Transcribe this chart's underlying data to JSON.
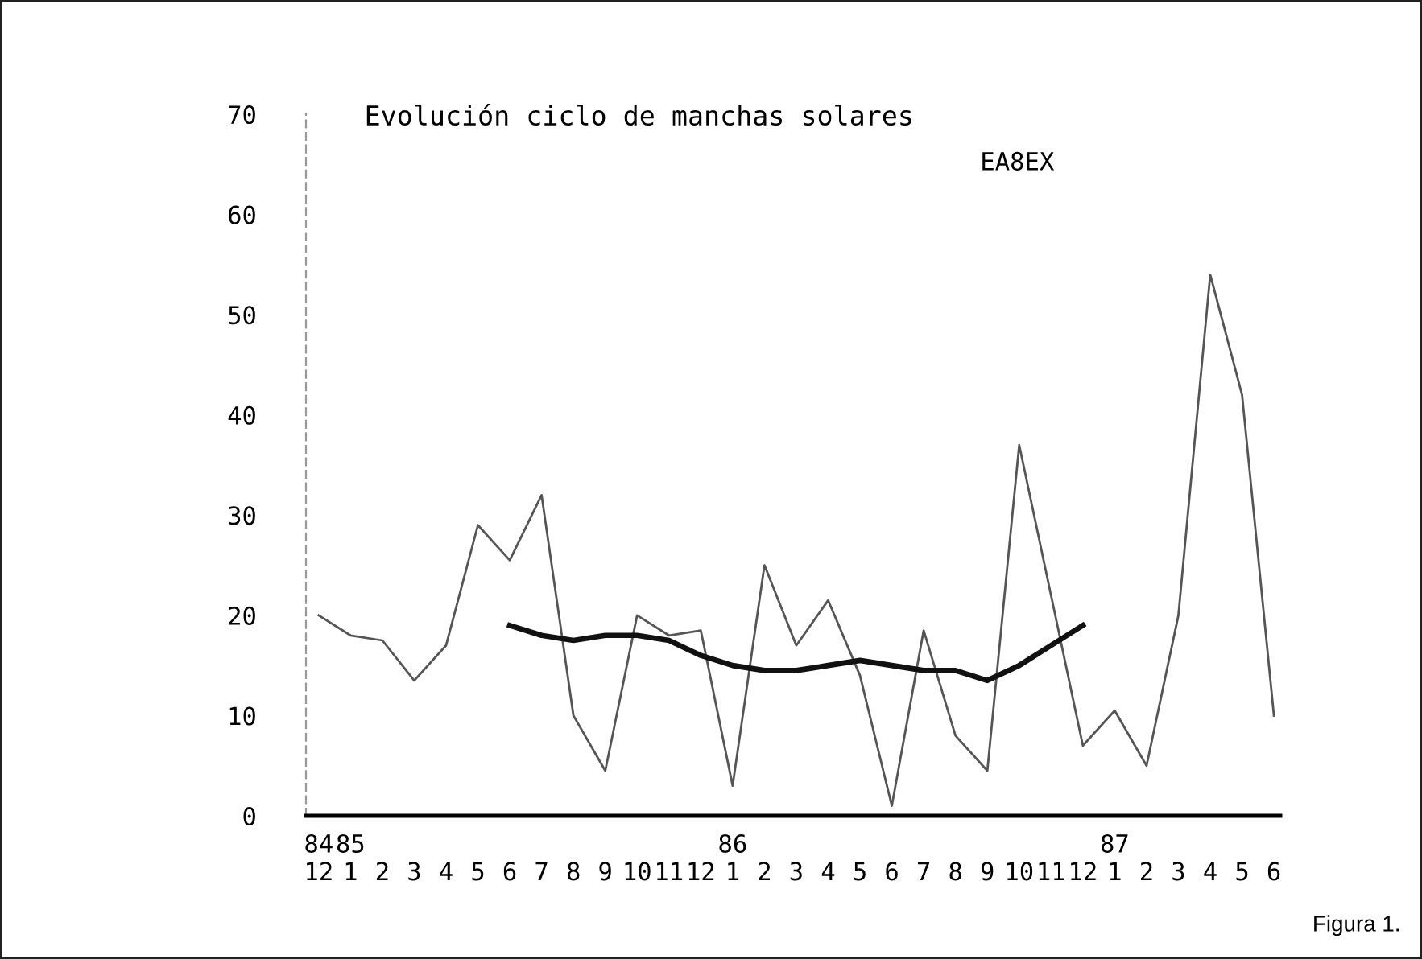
{
  "chart_data": {
    "type": "line",
    "title": "Evolución ciclo de manchas solares",
    "annotations": [
      "EA8EX",
      "Figura 1."
    ],
    "categories": [
      "84\n12",
      "85\n1",
      "2",
      "3",
      "4",
      "5",
      "6",
      "7",
      "8",
      "9",
      "10",
      "11",
      "12",
      "86\n1",
      "2",
      "3",
      "4",
      "5",
      "6",
      "7",
      "8",
      "9",
      "10",
      "11",
      "12",
      "87\n1",
      "2",
      "3",
      "4",
      "5",
      "6"
    ],
    "series": [
      {
        "color": "#555555",
        "values": [
          20,
          18,
          17.5,
          13.5,
          17,
          29,
          25.5,
          32,
          10,
          4.5,
          20,
          18,
          18.5,
          3,
          25,
          17,
          21.5,
          14,
          1,
          18.5,
          8,
          4.5,
          37,
          22,
          7,
          10.5,
          5,
          20,
          54,
          42,
          10
        ]
      },
      {
        "color": "#111111",
        "values": [
          null,
          null,
          null,
          null,
          null,
          null,
          19,
          18,
          17.5,
          18,
          18,
          17.5,
          16,
          15,
          14.5,
          14.5,
          15,
          15.5,
          15,
          14.5,
          14.5,
          13.5,
          15,
          17,
          19,
          null,
          null,
          null,
          null,
          null,
          null
        ]
      }
    ],
    "ylim": [
      0,
      70
    ],
    "yticks": [
      0,
      10,
      20,
      30,
      40,
      50,
      60,
      70
    ],
    "grid": false,
    "marker": "none",
    "line_style": "solid"
  }
}
